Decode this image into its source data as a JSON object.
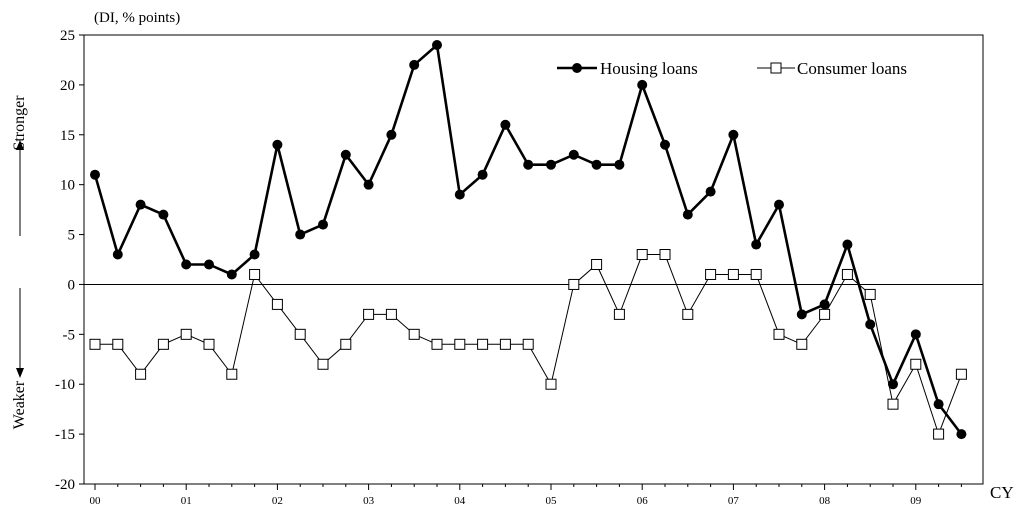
{
  "chart_data": {
    "type": "line",
    "unit_label": "(DI, % points)",
    "y_axis_top_label": "Stronger",
    "y_axis_bottom_label": "Weaker",
    "x_axis_end_label": "CY",
    "ylim": [
      -20,
      25
    ],
    "yticks": [
      25,
      20,
      15,
      10,
      5,
      0,
      -5,
      -10,
      -15,
      -20
    ],
    "ytick_labels": [
      "25",
      "20",
      "15",
      "10",
      "5",
      "0",
      "-5",
      "-10",
      "-15",
      "-20"
    ],
    "zero_line": true,
    "grid": false,
    "legend_position": "top-right",
    "x_year_labels": [
      "00",
      "01",
      "02",
      "03",
      "04",
      "05",
      "06",
      "07",
      "08",
      "09"
    ],
    "quarters_per_year": 4,
    "series": [
      {
        "name": "Housing loans",
        "marker": "filled-circle",
        "color": "#000000",
        "values": [
          11,
          3,
          8,
          7,
          2,
          2,
          1,
          3,
          14,
          5,
          6,
          13,
          10,
          15,
          22,
          24,
          9,
          11,
          16,
          12,
          12,
          13,
          12,
          12,
          20,
          14,
          7,
          9.3,
          15,
          4,
          8,
          -3,
          -2,
          4,
          -4,
          -10,
          -5,
          -12,
          -15
        ]
      },
      {
        "name": "Consumer loans",
        "marker": "open-square",
        "color": "#000000",
        "values": [
          -6,
          -6,
          -9,
          -6,
          -5,
          -6,
          -9,
          1,
          -2,
          -5,
          -8,
          -6,
          -3,
          -3,
          -5,
          -6,
          -6,
          -6,
          -6,
          -6,
          -10,
          0,
          2,
          -3,
          3,
          3,
          -3,
          1,
          1,
          1,
          -5,
          -6,
          -3,
          1,
          -1,
          -12,
          -8,
          -15,
          -9
        ]
      }
    ]
  }
}
